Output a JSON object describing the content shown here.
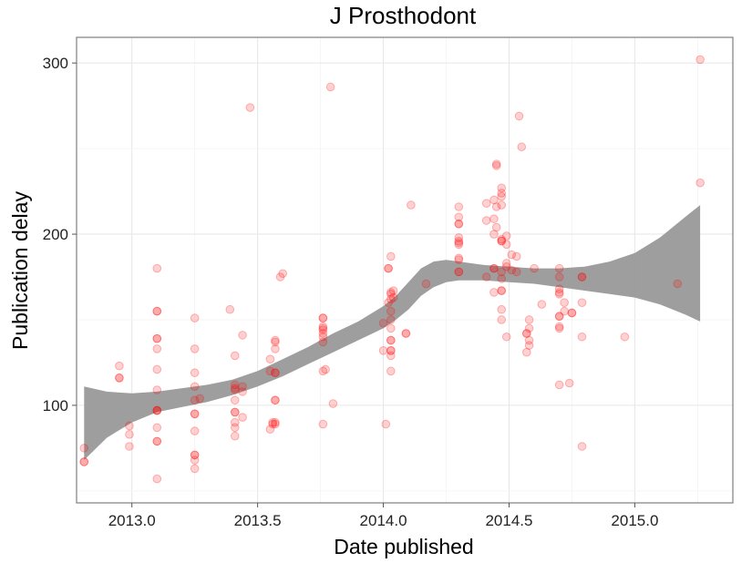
{
  "chart_data": {
    "type": "scatter",
    "title": "J Prosthodont",
    "xlabel": "Date published",
    "ylabel": "Publication delay",
    "xlim": [
      2012.78,
      2015.39
    ],
    "ylim": [
      43,
      315
    ],
    "x_ticks": [
      2013.0,
      2013.5,
      2014.0,
      2014.5,
      2015.0
    ],
    "x_tick_labels": [
      "2013.0",
      "2013.5",
      "2014.0",
      "2014.5",
      "2015.0"
    ],
    "y_ticks": [
      100,
      200,
      300
    ],
    "y_tick_labels": [
      "100",
      "200",
      "300"
    ],
    "grid": true,
    "point_color": "#ff0000",
    "band_color": "#999999",
    "points": [
      [
        2012.81,
        67
      ],
      [
        2012.81,
        67
      ],
      [
        2012.81,
        75
      ],
      [
        2012.95,
        116
      ],
      [
        2012.95,
        116
      ],
      [
        2012.95,
        123
      ],
      [
        2012.99,
        83
      ],
      [
        2012.99,
        88
      ],
      [
        2012.99,
        76
      ],
      [
        2013.1,
        180
      ],
      [
        2013.1,
        155
      ],
      [
        2013.1,
        155
      ],
      [
        2013.1,
        139
      ],
      [
        2013.1,
        139
      ],
      [
        2013.1,
        133
      ],
      [
        2013.1,
        121
      ],
      [
        2013.1,
        109
      ],
      [
        2013.1,
        97
      ],
      [
        2013.1,
        97
      ],
      [
        2013.1,
        97
      ],
      [
        2013.1,
        87
      ],
      [
        2013.1,
        79
      ],
      [
        2013.1,
        79
      ],
      [
        2013.1,
        57
      ],
      [
        2013.25,
        151
      ],
      [
        2013.25,
        133
      ],
      [
        2013.25,
        119
      ],
      [
        2013.25,
        111
      ],
      [
        2013.25,
        103
      ],
      [
        2013.25,
        95
      ],
      [
        2013.25,
        95
      ],
      [
        2013.25,
        85
      ],
      [
        2013.25,
        71
      ],
      [
        2013.25,
        71
      ],
      [
        2013.25,
        68
      ],
      [
        2013.25,
        63
      ],
      [
        2013.27,
        104
      ],
      [
        2013.39,
        156
      ],
      [
        2013.41,
        129
      ],
      [
        2013.41,
        112
      ],
      [
        2013.41,
        110
      ],
      [
        2013.41,
        109
      ],
      [
        2013.41,
        103
      ],
      [
        2013.41,
        96
      ],
      [
        2013.41,
        96
      ],
      [
        2013.41,
        90
      ],
      [
        2013.41,
        87
      ],
      [
        2013.41,
        82
      ],
      [
        2013.44,
        141
      ],
      [
        2013.44,
        111
      ],
      [
        2013.44,
        108
      ],
      [
        2013.44,
        93
      ],
      [
        2013.47,
        274
      ],
      [
        2013.55,
        127
      ],
      [
        2013.55,
        120
      ],
      [
        2013.55,
        86
      ],
      [
        2013.56,
        89
      ],
      [
        2013.56,
        90
      ],
      [
        2013.57,
        138
      ],
      [
        2013.57,
        137
      ],
      [
        2013.57,
        133
      ],
      [
        2013.57,
        119
      ],
      [
        2013.57,
        119
      ],
      [
        2013.57,
        103
      ],
      [
        2013.57,
        103
      ],
      [
        2013.57,
        90
      ],
      [
        2013.57,
        89
      ],
      [
        2013.59,
        175
      ],
      [
        2013.6,
        177
      ],
      [
        2013.76,
        151
      ],
      [
        2013.76,
        151
      ],
      [
        2013.76,
        146
      ],
      [
        2013.76,
        145
      ],
      [
        2013.76,
        144
      ],
      [
        2013.76,
        142
      ],
      [
        2013.76,
        140
      ],
      [
        2013.76,
        137
      ],
      [
        2013.76,
        120
      ],
      [
        2013.76,
        89
      ],
      [
        2013.77,
        121
      ],
      [
        2013.79,
        286
      ],
      [
        2013.8,
        101
      ],
      [
        2014.0,
        148
      ],
      [
        2014.0,
        132
      ],
      [
        2014.01,
        89
      ],
      [
        2014.02,
        180
      ],
      [
        2014.02,
        180
      ],
      [
        2014.02,
        160
      ],
      [
        2014.03,
        187
      ],
      [
        2014.03,
        165
      ],
      [
        2014.03,
        166
      ],
      [
        2014.03,
        162
      ],
      [
        2014.03,
        155
      ],
      [
        2014.03,
        150
      ],
      [
        2014.03,
        145
      ],
      [
        2014.03,
        138
      ],
      [
        2014.03,
        138
      ],
      [
        2014.03,
        132
      ],
      [
        2014.03,
        132
      ],
      [
        2014.03,
        129
      ],
      [
        2014.03,
        120
      ],
      [
        2014.04,
        167
      ],
      [
        2014.04,
        163
      ],
      [
        2014.09,
        142
      ],
      [
        2014.09,
        142
      ],
      [
        2014.11,
        217
      ],
      [
        2014.17,
        171
      ],
      [
        2014.3,
        216
      ],
      [
        2014.3,
        210
      ],
      [
        2014.3,
        206
      ],
      [
        2014.3,
        206
      ],
      [
        2014.3,
        198
      ],
      [
        2014.3,
        196
      ],
      [
        2014.3,
        195
      ],
      [
        2014.3,
        194
      ],
      [
        2014.3,
        186
      ],
      [
        2014.3,
        185
      ],
      [
        2014.3,
        178
      ],
      [
        2014.3,
        178
      ],
      [
        2014.41,
        218
      ],
      [
        2014.41,
        208
      ],
      [
        2014.41,
        175
      ],
      [
        2014.44,
        220
      ],
      [
        2014.44,
        209
      ],
      [
        2014.44,
        200
      ],
      [
        2014.44,
        180
      ],
      [
        2014.44,
        180
      ],
      [
        2014.44,
        166
      ],
      [
        2014.45,
        240
      ],
      [
        2014.45,
        241
      ],
      [
        2014.45,
        216
      ],
      [
        2014.45,
        204
      ],
      [
        2014.47,
        227
      ],
      [
        2014.47,
        224
      ],
      [
        2014.47,
        222
      ],
      [
        2014.47,
        217
      ],
      [
        2014.47,
        197
      ],
      [
        2014.47,
        196
      ],
      [
        2014.47,
        196
      ],
      [
        2014.47,
        178
      ],
      [
        2014.47,
        174
      ],
      [
        2014.47,
        167
      ],
      [
        2014.47,
        167
      ],
      [
        2014.47,
        156
      ],
      [
        2014.47,
        150
      ],
      [
        2014.49,
        199
      ],
      [
        2014.49,
        194
      ],
      [
        2014.49,
        183
      ],
      [
        2014.49,
        181
      ],
      [
        2014.49,
        140
      ],
      [
        2014.51,
        188
      ],
      [
        2014.51,
        179
      ],
      [
        2014.53,
        187
      ],
      [
        2014.53,
        178
      ],
      [
        2014.54,
        269
      ],
      [
        2014.55,
        251
      ],
      [
        2014.57,
        142
      ],
      [
        2014.57,
        142
      ],
      [
        2014.57,
        131
      ],
      [
        2014.58,
        150
      ],
      [
        2014.58,
        145
      ],
      [
        2014.58,
        138
      ],
      [
        2014.58,
        135
      ],
      [
        2014.6,
        180
      ],
      [
        2014.63,
        159
      ],
      [
        2014.7,
        180
      ],
      [
        2014.7,
        175
      ],
      [
        2014.7,
        168
      ],
      [
        2014.7,
        165
      ],
      [
        2014.7,
        166
      ],
      [
        2014.7,
        152
      ],
      [
        2014.7,
        152
      ],
      [
        2014.7,
        146
      ],
      [
        2014.7,
        145
      ],
      [
        2014.7,
        112
      ],
      [
        2014.72,
        155
      ],
      [
        2014.72,
        160
      ],
      [
        2014.74,
        113
      ],
      [
        2014.75,
        154
      ],
      [
        2014.75,
        154
      ],
      [
        2014.79,
        175
      ],
      [
        2014.79,
        175
      ],
      [
        2014.79,
        160
      ],
      [
        2014.79,
        140
      ],
      [
        2014.79,
        76
      ],
      [
        2014.96,
        140
      ],
      [
        2015.17,
        171
      ],
      [
        2015.26,
        302
      ],
      [
        2015.26,
        230
      ]
    ],
    "smooth_band": {
      "x": [
        2012.81,
        2012.9,
        2013.0,
        2013.1,
        2013.2,
        2013.3,
        2013.4,
        2013.5,
        2013.6,
        2013.7,
        2013.8,
        2013.9,
        2014.0,
        2014.05,
        2014.1,
        2014.15,
        2014.2,
        2014.25,
        2014.3,
        2014.4,
        2014.5,
        2014.6,
        2014.7,
        2014.8,
        2014.9,
        2015.0,
        2015.1,
        2015.2,
        2015.26
      ],
      "upper": [
        111,
        108,
        107,
        108,
        110,
        112,
        115,
        120,
        127,
        134,
        142,
        149,
        158,
        164,
        172,
        180,
        184,
        185,
        184,
        182,
        181,
        180,
        180,
        181,
        184,
        189,
        198,
        210,
        217
      ],
      "lower": [
        68,
        81,
        90,
        96,
        99,
        102,
        106,
        111,
        117,
        124,
        131,
        138,
        145,
        150,
        156,
        164,
        169,
        172,
        173,
        173,
        172,
        171,
        169,
        167,
        165,
        163,
        159,
        153,
        149
      ]
    }
  }
}
